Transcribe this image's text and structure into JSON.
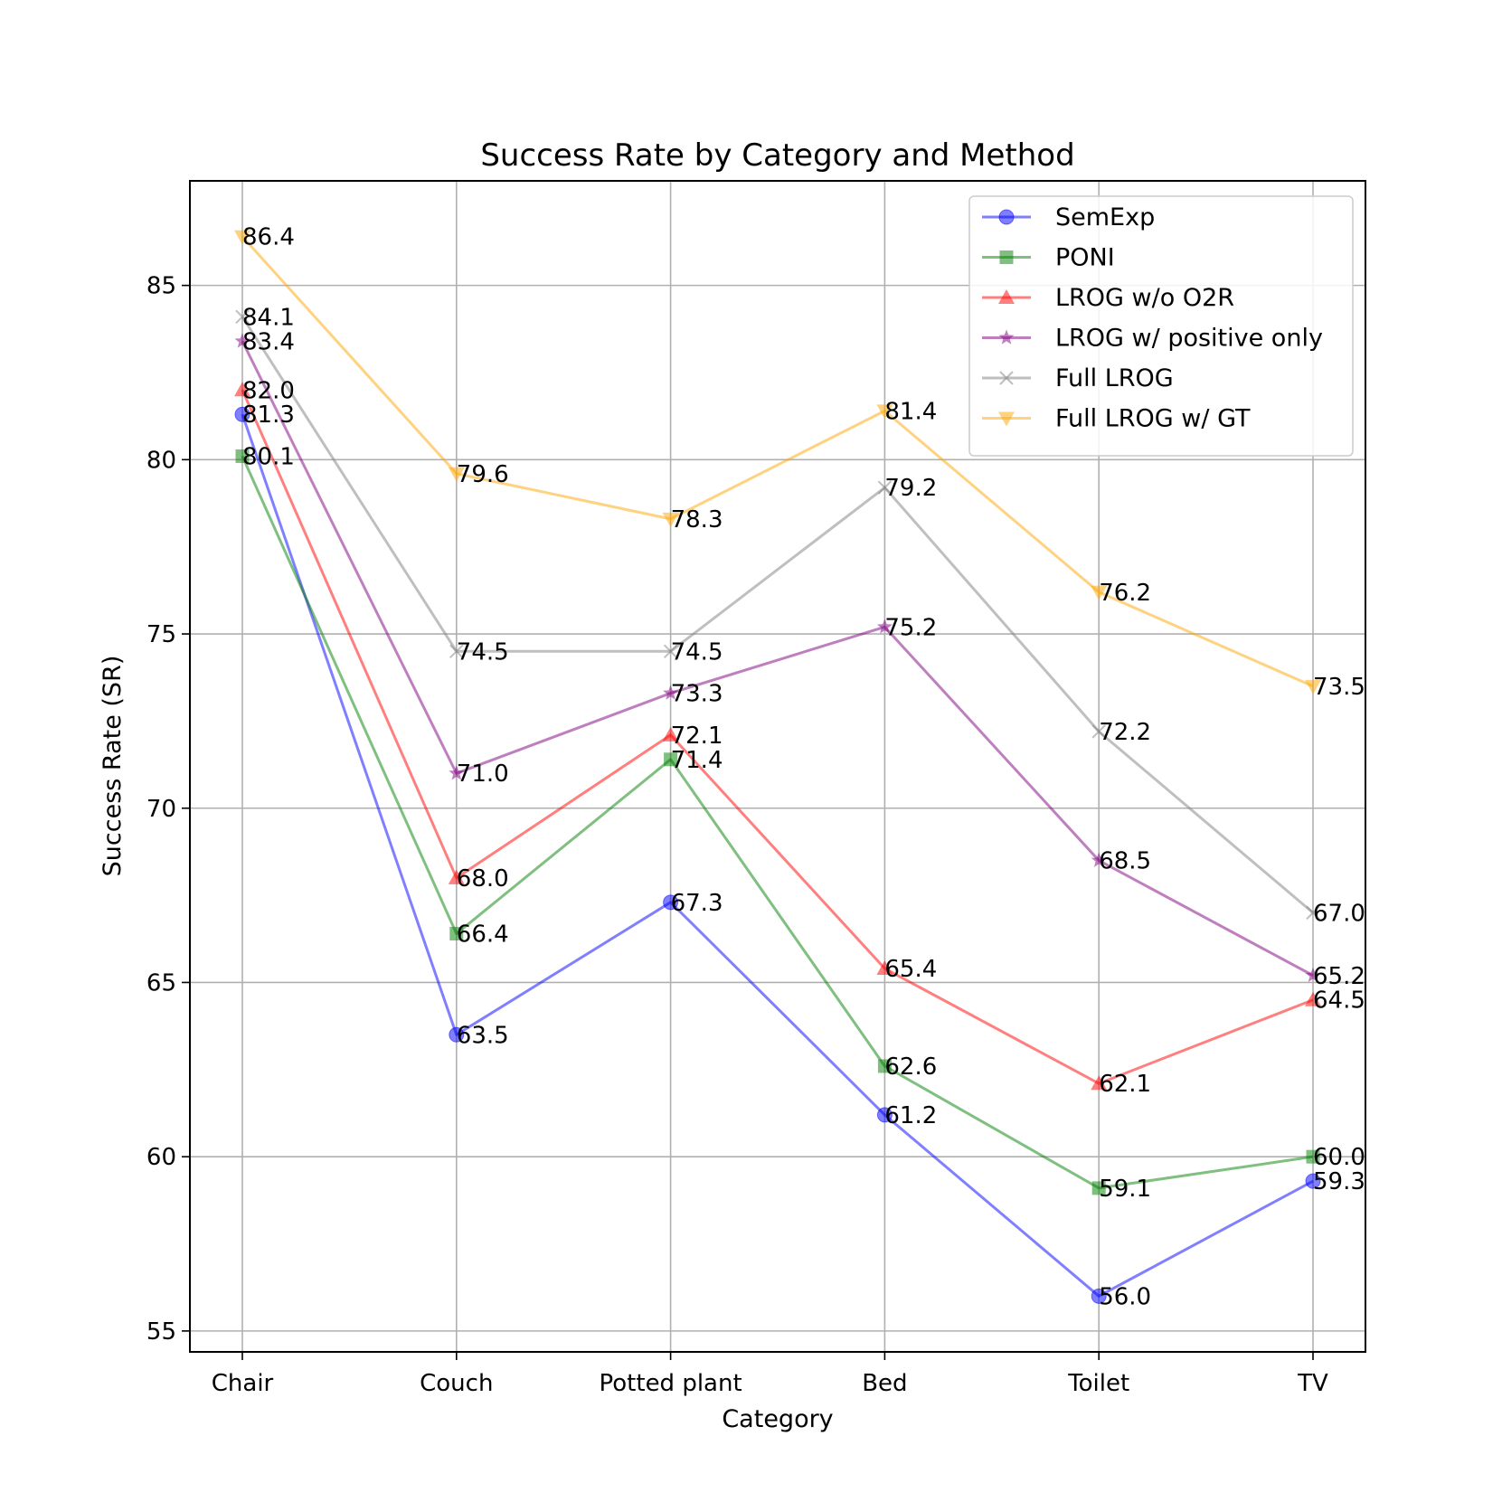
{
  "chart_data": {
    "type": "line",
    "title": "Success Rate by Category and Method",
    "xlabel": "Category",
    "ylabel": "Success Rate (SR)",
    "categories": [
      "Chair",
      "Couch",
      "Potted plant",
      "Bed",
      "Toilet",
      "TV"
    ],
    "ylim": [
      54.4,
      88.0
    ],
    "yticks": [
      55,
      60,
      65,
      70,
      75,
      80,
      85
    ],
    "grid": true,
    "legend_position": "top-right",
    "series": [
      {
        "name": "SemExp",
        "color": "#0000ff",
        "marker": "circle",
        "values": [
          81.3,
          63.5,
          67.3,
          61.2,
          56.0,
          59.3
        ]
      },
      {
        "name": "PONI",
        "color": "#008000",
        "marker": "square",
        "values": [
          80.1,
          66.4,
          71.4,
          62.6,
          59.1,
          60.0
        ]
      },
      {
        "name": "LROG w/o O2R",
        "color": "#ff0000",
        "marker": "triangle-up",
        "values": [
          82.0,
          68.0,
          72.1,
          65.4,
          62.1,
          64.5
        ]
      },
      {
        "name": "LROG w/ positive only",
        "color": "#800080",
        "marker": "star",
        "values": [
          83.4,
          71.0,
          73.3,
          75.2,
          68.5,
          65.2
        ]
      },
      {
        "name": "Full LROG",
        "color": "#808080",
        "marker": "x",
        "values": [
          84.1,
          74.5,
          74.5,
          79.2,
          72.2,
          67.0
        ]
      },
      {
        "name": "Full LROG w/ GT",
        "color": "#ffa500",
        "marker": "triangle-down",
        "values": [
          86.4,
          79.6,
          78.3,
          81.4,
          76.2,
          73.5
        ]
      }
    ]
  }
}
